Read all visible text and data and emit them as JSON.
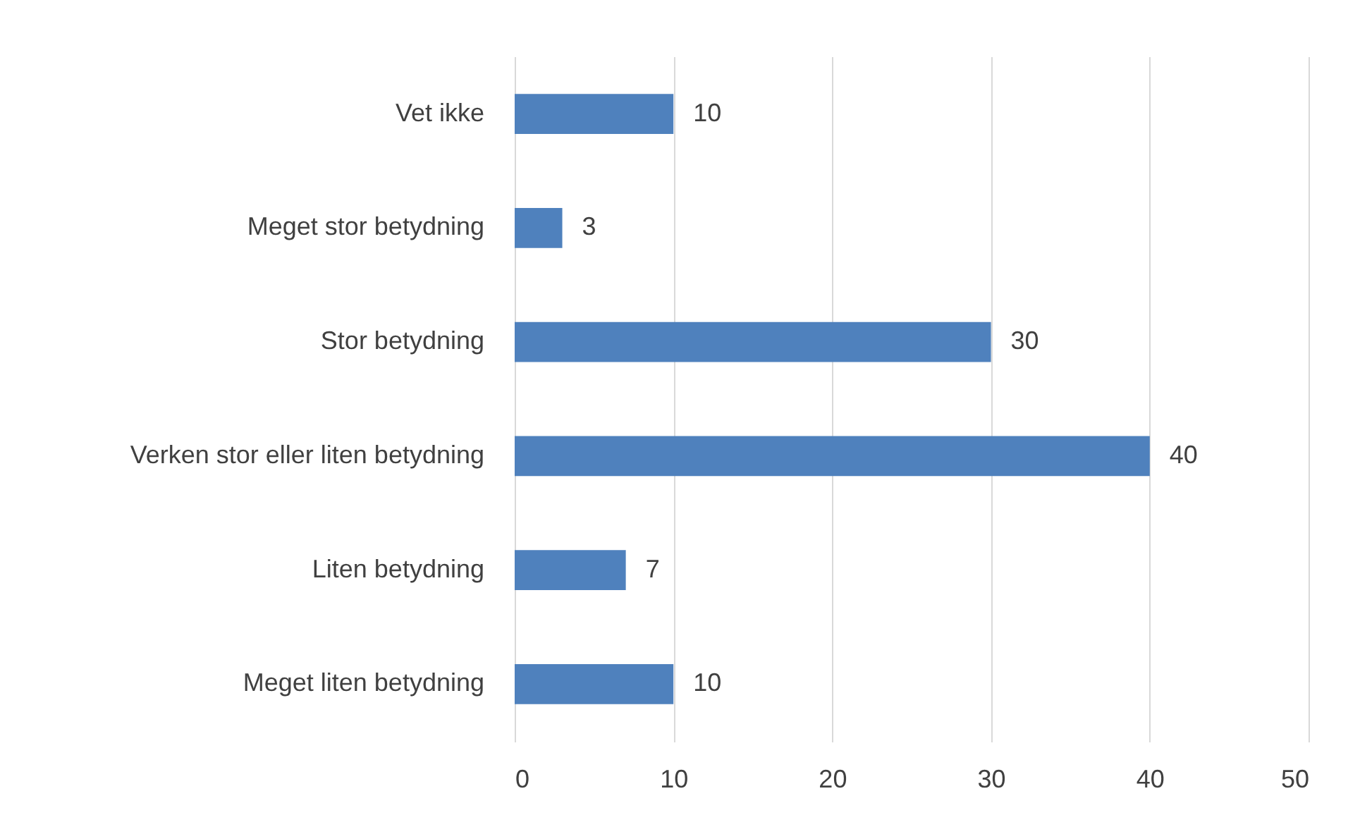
{
  "chart_data": {
    "type": "bar",
    "orientation": "horizontal",
    "categories": [
      "Vet ikke",
      "Meget stor betydning",
      "Stor betydning",
      "Verken stor eller liten betydning",
      "Liten betydning",
      "Meget liten betydning"
    ],
    "values": [
      10,
      3,
      30,
      40,
      7,
      10
    ],
    "color": "#4f81bd",
    "xlim": [
      0,
      50
    ],
    "xticks": [
      0,
      10,
      20,
      30,
      40,
      50
    ],
    "grid": "x",
    "data_labels": true
  }
}
